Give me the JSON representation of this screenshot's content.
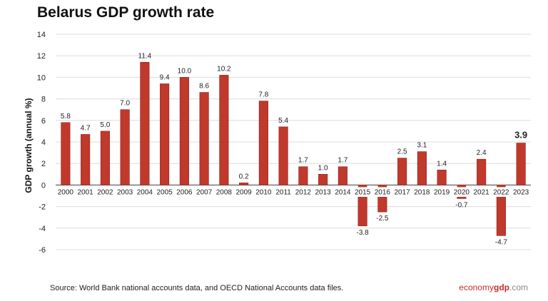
{
  "chart_data": {
    "type": "bar",
    "title": "Belarus GDP growth rate",
    "ylabel": "GDP growth (annual %)",
    "xlabel": "",
    "ylim": [
      -6,
      14
    ],
    "yticks": [
      -6,
      -4,
      -2,
      0,
      2,
      4,
      6,
      8,
      10,
      12,
      14
    ],
    "grid": true,
    "bar_color": "#c0392b",
    "categories": [
      "2000",
      "2001",
      "2002",
      "2003",
      "2004",
      "2005",
      "2006",
      "2007",
      "2008",
      "2009",
      "2010",
      "2011",
      "2012",
      "2013",
      "2014",
      "2015",
      "2016",
      "2017",
      "2018",
      "2019",
      "2020",
      "2021",
      "2022",
      "2023"
    ],
    "values": [
      5.8,
      4.7,
      5.0,
      7.0,
      11.4,
      9.4,
      10.0,
      8.6,
      10.2,
      0.2,
      7.8,
      5.4,
      1.7,
      1.0,
      1.7,
      -3.8,
      -2.5,
      2.5,
      3.1,
      1.4,
      -0.7,
      2.4,
      -4.7,
      3.9
    ],
    "value_labels": [
      "5.8",
      "4.7",
      "5.0",
      "7.0",
      "11.4",
      "9.4",
      "10.0",
      "8.6",
      "10.2",
      "0.2",
      "7.8",
      "5.4",
      "1.7",
      "1.0",
      "1.7",
      "-3.8",
      "-2.5",
      "2.5",
      "3.1",
      "1.4",
      "-0.7",
      "2.4",
      "-4.7",
      "3.9"
    ],
    "highlight_index": 23
  },
  "source": "Source:  World Bank national accounts data, and OECD National Accounts data files.",
  "brand": {
    "part1": "economy",
    "part2": "gdp",
    "part3": ".com"
  }
}
